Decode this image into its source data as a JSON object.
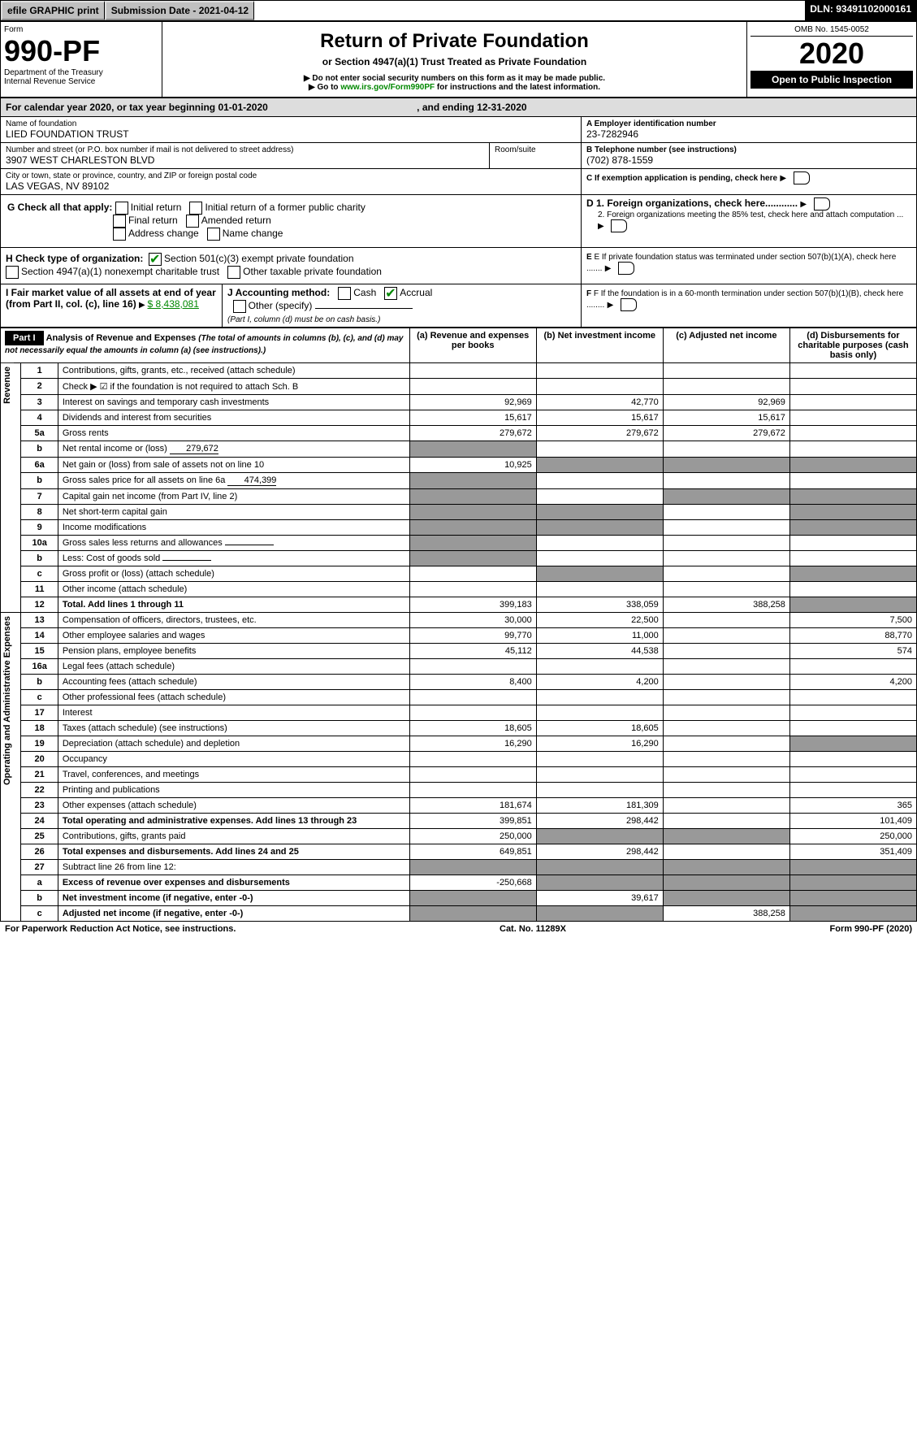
{
  "topbar": {
    "efile": "efile GRAPHIC print",
    "subdate_lbl": "Submission Date - 2021-04-12",
    "dln": "DLN: 93491102000161"
  },
  "formhdr": {
    "form": "Form",
    "num": "990-PF",
    "dept": "Department of the Treasury",
    "irs": "Internal Revenue Service",
    "title": "Return of Private Foundation",
    "subtitle": "or Section 4947(a)(1) Trust Treated as Private Foundation",
    "warn1": "Do not enter social security numbers on this form as it may be made public.",
    "warn2": "Go to ",
    "link": "www.irs.gov/Form990PF",
    "warn3": " for instructions and the latest information.",
    "omb": "OMB No. 1545-0052",
    "year": "2020",
    "open": "Open to Public Inspection"
  },
  "cal": {
    "txt": "For calendar year 2020, or tax year beginning 01-01-2020",
    "end": ", and ending 12-31-2020"
  },
  "info": {
    "name_lbl": "Name of foundation",
    "name": "LIED FOUNDATION TRUST",
    "ein_lbl": "A Employer identification number",
    "ein": "23-7282946",
    "addr_lbl": "Number and street (or P.O. box number if mail is not delivered to street address)",
    "addr": "3907 WEST CHARLESTON BLVD",
    "room_lbl": "Room/suite",
    "tel_lbl": "B Telephone number (see instructions)",
    "tel": "(702) 878-1559",
    "city_lbl": "City or town, state or province, country, and ZIP or foreign postal code",
    "city": "LAS VEGAS, NV  89102",
    "c": "C If exemption application is pending, check here",
    "g": "G Check all that apply:",
    "g1": "Initial return",
    "g2": "Initial return of a former public charity",
    "g3": "Final return",
    "g4": "Amended return",
    "g5": "Address change",
    "g6": "Name change",
    "d1": "D 1. Foreign organizations, check here............",
    "d2": "2. Foreign organizations meeting the 85% test, check here and attach computation ...",
    "h": "H Check type of organization:",
    "h1": "Section 501(c)(3) exempt private foundation",
    "h2": "Section 4947(a)(1) nonexempt charitable trust",
    "h3": "Other taxable private foundation",
    "e": "E If private foundation status was terminated under section 507(b)(1)(A), check here .......",
    "i": "I Fair market value of all assets at end of year (from Part II, col. (c), line 16)",
    "ival": "$  8,438,081",
    "j": "J Accounting method:",
    "j1": "Cash",
    "j2": "Accrual",
    "j3": "Other (specify)",
    "jnote": "(Part I, column (d) must be on cash basis.)",
    "f": "F If the foundation is in a 60-month termination under section 507(b)(1)(B), check here ........"
  },
  "part1": {
    "title": "Part I",
    "heading": "Analysis of Revenue and Expenses ",
    "note": "(The total of amounts in columns (b), (c), and (d) may not necessarily equal the amounts in column (a) (see instructions).)",
    "cols": {
      "a": "(a)   Revenue and expenses per books",
      "b": "(b)  Net investment income",
      "c": "(c)  Adjusted net income",
      "d": "(d)  Disbursements for charitable purposes (cash basis only)"
    }
  },
  "revenue_label": "Revenue",
  "expenses_label": "Operating and Administrative Expenses",
  "rows": [
    {
      "n": "1",
      "d": "Contributions, gifts, grants, etc., received (attach schedule)"
    },
    {
      "n": "2",
      "d": "Check ▶ ☑ if the foundation is not required to attach Sch. B",
      "dots": 1
    },
    {
      "n": "3",
      "d": "Interest on savings and temporary cash investments",
      "a": "92,969",
      "b": "42,770",
      "c": "92,969"
    },
    {
      "n": "4",
      "d": "Dividends and interest from securities",
      "a": "15,617",
      "b": "15,617",
      "c": "15,617"
    },
    {
      "n": "5a",
      "d": "Gross rents",
      "a": "279,672",
      "b": "279,672",
      "c": "279,672"
    },
    {
      "n": "b",
      "d": "Net rental income or (loss)",
      "inline": "279,672",
      "gray_a": 1
    },
    {
      "n": "6a",
      "d": "Net gain or (loss) from sale of assets not on line 10",
      "a": "10,925",
      "gray_bcd": 1
    },
    {
      "n": "b",
      "d": "Gross sales price for all assets on line 6a",
      "inline": "474,399",
      "gray_a": 1
    },
    {
      "n": "7",
      "d": "Capital gain net income (from Part IV, line 2)",
      "gray_a": 1,
      "gray_cd": 1
    },
    {
      "n": "8",
      "d": "Net short-term capital gain",
      "gray_ab": 1,
      "gray_d": 1
    },
    {
      "n": "9",
      "d": "Income modifications",
      "gray_ab": 1,
      "gray_d": 1
    },
    {
      "n": "10a",
      "d": "Gross sales less returns and allowances",
      "inline": "",
      "gray_a": 1
    },
    {
      "n": "b",
      "d": "Less: Cost of goods sold",
      "inline": "",
      "gray_a": 1
    },
    {
      "n": "c",
      "d": "Gross profit or (loss) (attach schedule)",
      "gray_b": 1,
      "gray_d": 1
    },
    {
      "n": "11",
      "d": "Other income (attach schedule)"
    },
    {
      "n": "12",
      "d": "Total. Add lines 1 through 11",
      "bold": 1,
      "a": "399,183",
      "b": "338,059",
      "c": "388,258",
      "gray_d": 1
    }
  ],
  "exp": [
    {
      "n": "13",
      "d": "Compensation of officers, directors, trustees, etc.",
      "a": "30,000",
      "b": "22,500",
      "dv": "7,500"
    },
    {
      "n": "14",
      "d": "Other employee salaries and wages",
      "a": "99,770",
      "b": "11,000",
      "dv": "88,770"
    },
    {
      "n": "15",
      "d": "Pension plans, employee benefits",
      "a": "45,112",
      "b": "44,538",
      "dv": "574"
    },
    {
      "n": "16a",
      "d": "Legal fees (attach schedule)"
    },
    {
      "n": "b",
      "d": "Accounting fees (attach schedule)",
      "a": "8,400",
      "b": "4,200",
      "dv": "4,200"
    },
    {
      "n": "c",
      "d": "Other professional fees (attach schedule)"
    },
    {
      "n": "17",
      "d": "Interest"
    },
    {
      "n": "18",
      "d": "Taxes (attach schedule) (see instructions)",
      "a": "18,605",
      "b": "18,605"
    },
    {
      "n": "19",
      "d": "Depreciation (attach schedule) and depletion",
      "a": "16,290",
      "b": "16,290",
      "gray_d": 1
    },
    {
      "n": "20",
      "d": "Occupancy"
    },
    {
      "n": "21",
      "d": "Travel, conferences, and meetings"
    },
    {
      "n": "22",
      "d": "Printing and publications"
    },
    {
      "n": "23",
      "d": "Other expenses (attach schedule)",
      "a": "181,674",
      "b": "181,309",
      "dv": "365"
    },
    {
      "n": "24",
      "d": "Total operating and administrative expenses. Add lines 13 through 23",
      "bold": 1,
      "a": "399,851",
      "b": "298,442",
      "dv": "101,409"
    },
    {
      "n": "25",
      "d": "Contributions, gifts, grants paid",
      "a": "250,000",
      "gray_bc": 1,
      "dv": "250,000"
    },
    {
      "n": "26",
      "d": "Total expenses and disbursements. Add lines 24 and 25",
      "bold": 1,
      "a": "649,851",
      "b": "298,442",
      "dv": "351,409"
    },
    {
      "n": "27",
      "d": "Subtract line 26 from line 12:",
      "gray_all": 1
    },
    {
      "n": "a",
      "d": "Excess of revenue over expenses and disbursements",
      "bold": 1,
      "a": "-250,668",
      "gray_bcd": 1
    },
    {
      "n": "b",
      "d": "Net investment income (if negative, enter -0-)",
      "bold": 1,
      "gray_a": 1,
      "b": "39,617",
      "gray_cd": 1
    },
    {
      "n": "c",
      "d": "Adjusted net income (if negative, enter -0-)",
      "bold": 1,
      "gray_ab": 1,
      "c": "388,258",
      "gray_d": 1
    }
  ],
  "footer": {
    "l": "For Paperwork Reduction Act Notice, see instructions.",
    "c": "Cat. No. 11289X",
    "r": "Form 990-PF (2020)"
  }
}
